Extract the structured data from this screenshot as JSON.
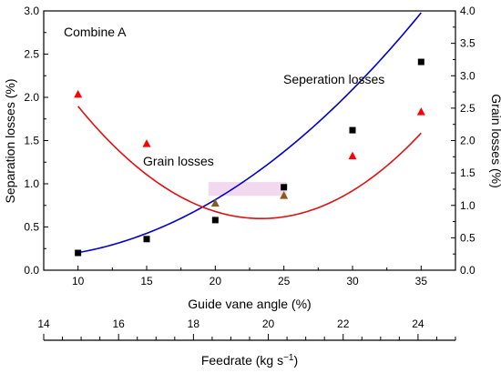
{
  "chart_data": {
    "type": "scatter",
    "title": "",
    "annotation": "Combine A",
    "x_axis": {
      "label": "Guide vane angle (%)",
      "range": [
        7.5,
        37.5
      ],
      "ticks": [
        10,
        15,
        20,
        25,
        30,
        35
      ],
      "tick_labels": [
        "10",
        "15",
        "20",
        "25",
        "30",
        "35"
      ]
    },
    "x2_axis": {
      "label_main": "Feedrate (kg s",
      "label_sup": "−1",
      "label_end": ")",
      "range": [
        14,
        25
      ],
      "ticks": [
        14,
        16,
        18,
        20,
        22,
        24
      ],
      "tick_labels": [
        "14",
        "16",
        "18",
        "20",
        "22",
        "24"
      ],
      "minor_step": 0.5
    },
    "y_left": {
      "label": "Separation losses (%)",
      "range": [
        0,
        3.0
      ],
      "ticks": [
        0,
        0.5,
        1.0,
        1.5,
        2.0,
        2.5,
        3.0
      ],
      "tick_labels": [
        "0.0",
        "0.5",
        "1.0",
        "1.5",
        "2.0",
        "2.5",
        "3.0"
      ]
    },
    "y_right": {
      "label": "Grain losses (%)",
      "range": [
        0,
        4.0
      ],
      "ticks": [
        0,
        0.5,
        1.0,
        1.5,
        2.0,
        2.5,
        3.0,
        3.5,
        4.0
      ],
      "tick_labels": [
        "0.0",
        "0.5",
        "1.0",
        "1.5",
        "2.0",
        "2.5",
        "3.0",
        "3.5",
        "4.0"
      ]
    },
    "series": [
      {
        "name": "Seperation losses",
        "axis": "left",
        "marker": "square",
        "color": "#0000cc",
        "marker_color": "#000000",
        "x": [
          10,
          15,
          20,
          25,
          30,
          35
        ],
        "y": [
          0.2,
          0.36,
          0.58,
          0.96,
          1.62,
          2.41
        ],
        "fit": [
          0.2555,
          -0.0384,
          0.00332
        ]
      },
      {
        "name": "Grain losses",
        "axis": "right",
        "marker": "triangle",
        "color": "#dd1111",
        "marker_color": "#ff0000",
        "highlight_color": "#8b5a1a",
        "highlight_indices": [
          2,
          3
        ],
        "x": [
          10,
          15,
          20,
          25,
          30,
          35
        ],
        "y": [
          2.71,
          1.95,
          1.03,
          1.15,
          1.76,
          2.44
        ],
        "fit": [
          6.0944,
          -0.4537,
          0.009714
        ]
      }
    ],
    "highlight_band": {
      "x_range": [
        19.5,
        25.2
      ],
      "y_left_range": [
        0.86,
        1.02
      ],
      "color": "#f2d9f0"
    },
    "series_labels": {
      "separation": "Seperation losses",
      "grain": "Grain losses"
    }
  }
}
